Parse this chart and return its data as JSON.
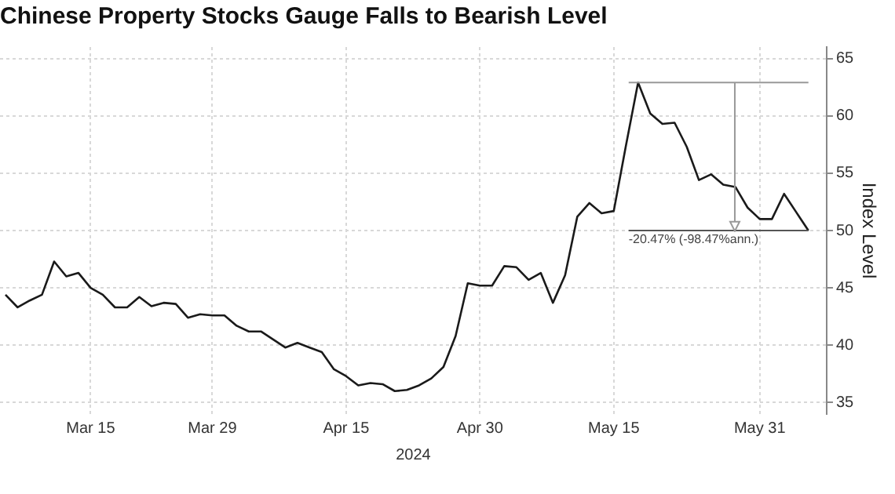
{
  "chart_data": {
    "type": "line",
    "title": "Chinese Property Stocks Gauge Falls to Bearish Level",
    "xlabel": "2024",
    "ylabel": "Index Level",
    "categories": [
      null,
      null,
      null,
      null,
      null,
      null,
      null,
      "Mar 15",
      null,
      null,
      null,
      null,
      null,
      null,
      null,
      null,
      null,
      "Mar 29",
      null,
      null,
      null,
      null,
      null,
      null,
      null,
      null,
      null,
      null,
      "Apr 15",
      null,
      null,
      null,
      null,
      null,
      null,
      null,
      null,
      null,
      null,
      "Apr 30",
      null,
      null,
      null,
      null,
      null,
      null,
      null,
      null,
      null,
      null,
      "May 15",
      null,
      null,
      null,
      null,
      null,
      null,
      null,
      null,
      null,
      null,
      null,
      "May 31",
      null,
      null,
      null,
      null
    ],
    "series": [
      {
        "color": "#1a1a1a",
        "values": [
          44.4,
          43.3,
          43.9,
          44.4,
          47.3,
          46.0,
          46.3,
          45.0,
          44.4,
          43.3,
          43.3,
          44.2,
          43.4,
          43.7,
          43.6,
          42.4,
          42.7,
          42.6,
          42.6,
          41.7,
          41.2,
          41.2,
          40.5,
          39.8,
          40.2,
          39.8,
          39.4,
          37.9,
          37.3,
          36.5,
          36.7,
          36.6,
          36.0,
          36.1,
          36.5,
          37.1,
          38.1,
          40.8,
          45.4,
          45.2,
          45.2,
          46.9,
          46.8,
          45.7,
          46.3,
          43.7,
          46.1,
          51.2,
          52.4,
          51.5,
          51.7,
          57.4,
          62.9,
          60.2,
          59.3,
          59.4,
          57.3,
          54.4,
          54.9,
          54.0,
          53.8,
          52.0,
          51.0,
          51.0,
          53.2,
          51.6,
          50.0
        ]
      }
    ],
    "ylim": [
      34,
      66
    ],
    "yticks": [
      35,
      40,
      45,
      50,
      55,
      60,
      65
    ],
    "grid": true,
    "legend": false,
    "marker": "none",
    "line_style": "solid",
    "ref_lines": [
      {
        "axis": "y",
        "value": 62.9,
        "color": "#999999"
      },
      {
        "axis": "y",
        "value": 50,
        "label": "-20.47% (-98.47%ann.)",
        "color": "#555555"
      }
    ]
  }
}
